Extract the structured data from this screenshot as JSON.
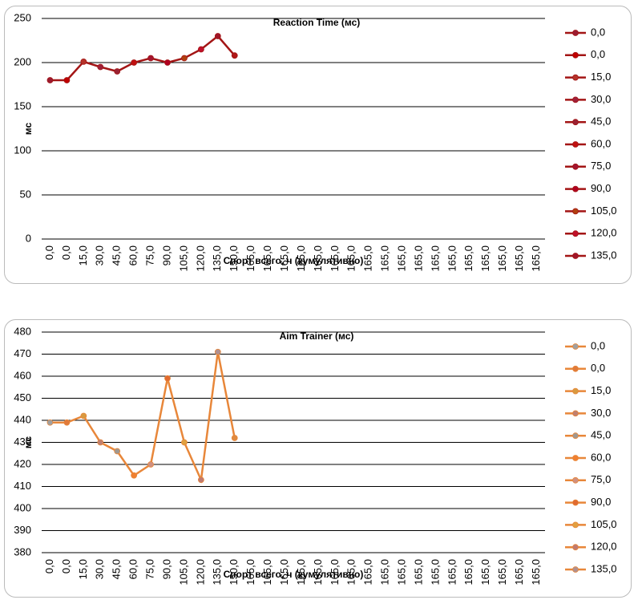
{
  "chart_data": [
    {
      "type": "line",
      "title": "Reaction Time (мс)",
      "y_label": "мс",
      "x_label": "Спорт всего, ч (кумулятивно)",
      "categories": [
        "0,0",
        "0,0",
        "15,0",
        "30,0",
        "45,0",
        "60,0",
        "75,0",
        "90,0",
        "105,0",
        "120,0",
        "135,0",
        "150,0",
        "165,0",
        "165,0",
        "165,0",
        "165,0",
        "165,0",
        "165,0",
        "165,0",
        "165,0",
        "165,0",
        "165,0",
        "165,0",
        "165,0",
        "165,0",
        "165,0",
        "165,0",
        "165,0",
        "165,0",
        "165,0"
      ],
      "series": [
        {
          "color": "#a31515",
          "values": [
            180,
            180,
            201,
            195,
            190,
            200,
            205,
            200,
            205,
            215,
            230,
            208,
            null,
            null,
            null,
            null,
            null,
            null,
            null,
            null,
            null,
            null,
            null,
            null,
            null,
            null,
            null,
            null,
            null,
            null
          ],
          "point_colors": [
            "#9b1b30",
            "#c00000",
            "#b5332a",
            "#a0203a",
            "#992233",
            "#c01010",
            "#a31530",
            "#b00020",
            "#b04010",
            "#c0102a",
            "#a01528",
            "#b01818"
          ]
        }
      ],
      "legend": [
        "0,0",
        "0,0",
        "15,0",
        "30,0",
        "45,0",
        "60,0",
        "75,0",
        "90,0",
        "105,0",
        "120,0",
        "135,0"
      ],
      "ylim": [
        0,
        250
      ],
      "yticks": [
        0,
        50,
        100,
        150,
        200,
        250
      ],
      "grid": true
    },
    {
      "type": "line",
      "title": "Aim Trainer (мс)",
      "y_label": "мс",
      "x_label": "Спорт всего, ч (кумулятивно)",
      "categories": [
        "0,0",
        "0,0",
        "15,0",
        "30,0",
        "45,0",
        "60,0",
        "75,0",
        "90,0",
        "105,0",
        "120,0",
        "135,0",
        "150,0",
        "165,0",
        "165,0",
        "165,0",
        "165,0",
        "165,0",
        "165,0",
        "165,0",
        "165,0",
        "165,0",
        "165,0",
        "165,0",
        "165,0",
        "165,0",
        "165,0",
        "165,0",
        "165,0",
        "165,0",
        "165,0"
      ],
      "series": [
        {
          "color": "#e8873a",
          "values": [
            439,
            439,
            442,
            430,
            426,
            415,
            420,
            459,
            430,
            413,
            471,
            432,
            null,
            null,
            null,
            null,
            null,
            null,
            null,
            null,
            null,
            null,
            null,
            null,
            null,
            null,
            null,
            null,
            null,
            null
          ],
          "point_colors": [
            "#a0a0a0",
            "#e07a3a",
            "#d89a40",
            "#c08070",
            "#a09890",
            "#f08030",
            "#d09080",
            "#e06a30",
            "#e0a040",
            "#c07a70",
            "#b09090",
            "#e08a40"
          ]
        }
      ],
      "legend": [
        "0,0",
        "0,0",
        "15,0",
        "30,0",
        "45,0",
        "60,0",
        "75,0",
        "90,0",
        "105,0",
        "120,0",
        "135,0"
      ],
      "ylim": [
        380,
        480
      ],
      "yticks": [
        380,
        390,
        400,
        410,
        420,
        430,
        440,
        450,
        460,
        470,
        480
      ],
      "grid": true
    }
  ]
}
